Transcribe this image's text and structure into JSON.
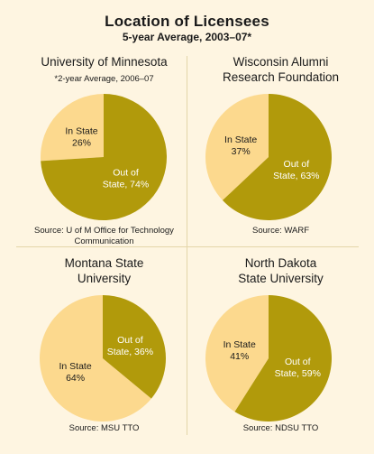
{
  "title": "Location of Licensees",
  "subtitle": "5-year Average, 2003–07*",
  "colors": {
    "in_state": "#FCD98E",
    "out_of_state": "#B19A0B",
    "background": "#FEF5E1"
  },
  "chart_data": [
    {
      "type": "pie",
      "title_lines": [
        "University of Minnesota"
      ],
      "note": "*2-year Average, 2006–07",
      "slices": [
        {
          "label_lines": [
            "In State",
            "26%"
          ],
          "value": 26,
          "color": "#FCD98E",
          "text_color": "#1a1a1a"
        },
        {
          "label_lines": [
            "Out of",
            "State, 74%"
          ],
          "value": 74,
          "color": "#B19A0B",
          "text_color": "#ffffff"
        }
      ],
      "source_lines": [
        "Source: U of M Office for Technology",
        "Communication"
      ]
    },
    {
      "type": "pie",
      "title_lines": [
        "Wisconsin Alumni",
        "Research Foundation"
      ],
      "note": "",
      "slices": [
        {
          "label_lines": [
            "In State",
            "37%"
          ],
          "value": 37,
          "color": "#FCD98E",
          "text_color": "#1a1a1a"
        },
        {
          "label_lines": [
            "Out of",
            "State, 63%"
          ],
          "value": 63,
          "color": "#B19A0B",
          "text_color": "#ffffff"
        }
      ],
      "source_lines": [
        "Source: WARF"
      ]
    },
    {
      "type": "pie",
      "title_lines": [
        "Montana State",
        "University"
      ],
      "note": "",
      "slices": [
        {
          "label_lines": [
            "In State",
            "64%"
          ],
          "value": 64,
          "color": "#FCD98E",
          "text_color": "#1a1a1a"
        },
        {
          "label_lines": [
            "Out of",
            "State, 36%"
          ],
          "value": 36,
          "color": "#B19A0B",
          "text_color": "#ffffff"
        }
      ],
      "source_lines": [
        "Source: MSU TTO"
      ]
    },
    {
      "type": "pie",
      "title_lines": [
        "North Dakota",
        "State University"
      ],
      "note": "",
      "slices": [
        {
          "label_lines": [
            "In State",
            "41%"
          ],
          "value": 41,
          "color": "#FCD98E",
          "text_color": "#1a1a1a"
        },
        {
          "label_lines": [
            "Out of",
            "State, 59%"
          ],
          "value": 59,
          "color": "#B19A0B",
          "text_color": "#ffffff"
        }
      ],
      "source_lines": [
        "Source: NDSU TTO"
      ]
    }
  ]
}
